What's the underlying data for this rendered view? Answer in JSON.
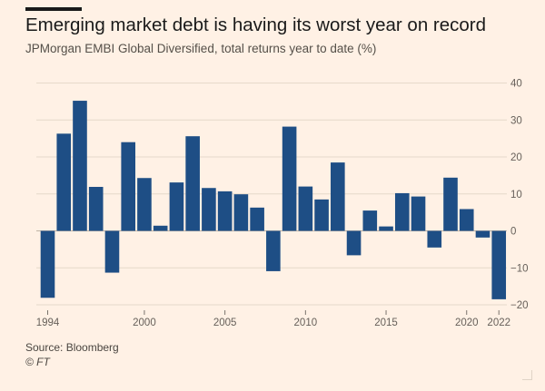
{
  "title": "Emerging market debt is having its worst year on record",
  "subtitle": "JPMorgan EMBI Global Diversified, total returns year to date (%)",
  "source": "Source: Bloomberg",
  "credit": "© FT",
  "colors": {
    "bar": "#1e4e85",
    "grid": "#e6d9ca",
    "zero": "#bfb3a5",
    "text": "#66605a",
    "background": "#fff1e5"
  },
  "chart_data": {
    "type": "bar",
    "title": "Emerging market debt is having its worst year on record",
    "ylabel": "JPMorgan EMBI Global Diversified, total returns year to date (%)",
    "xlabel": "",
    "ylim": [
      -20,
      40
    ],
    "yticks": [
      40,
      30,
      20,
      10,
      0,
      -10,
      -20
    ],
    "xtick_labels": [
      "1994",
      "2000",
      "2005",
      "2010",
      "2015",
      "2020",
      "2022"
    ],
    "categories": [
      "1994",
      "1995",
      "1996",
      "1997",
      "1998",
      "1999",
      "2000",
      "2001",
      "2002",
      "2003",
      "2004",
      "2005",
      "2006",
      "2007",
      "2008",
      "2009",
      "2010",
      "2011",
      "2012",
      "2013",
      "2014",
      "2015",
      "2016",
      "2017",
      "2018",
      "2019",
      "2020",
      "2021",
      "2022"
    ],
    "values": [
      -18.1,
      26.3,
      35.2,
      11.9,
      -11.3,
      24.0,
      14.3,
      1.4,
      13.1,
      25.6,
      11.6,
      10.7,
      9.9,
      6.3,
      -10.9,
      28.2,
      12.0,
      8.5,
      18.5,
      -6.6,
      5.5,
      1.2,
      10.2,
      9.3,
      -4.5,
      14.4,
      5.9,
      -1.8,
      -18.5
    ]
  }
}
